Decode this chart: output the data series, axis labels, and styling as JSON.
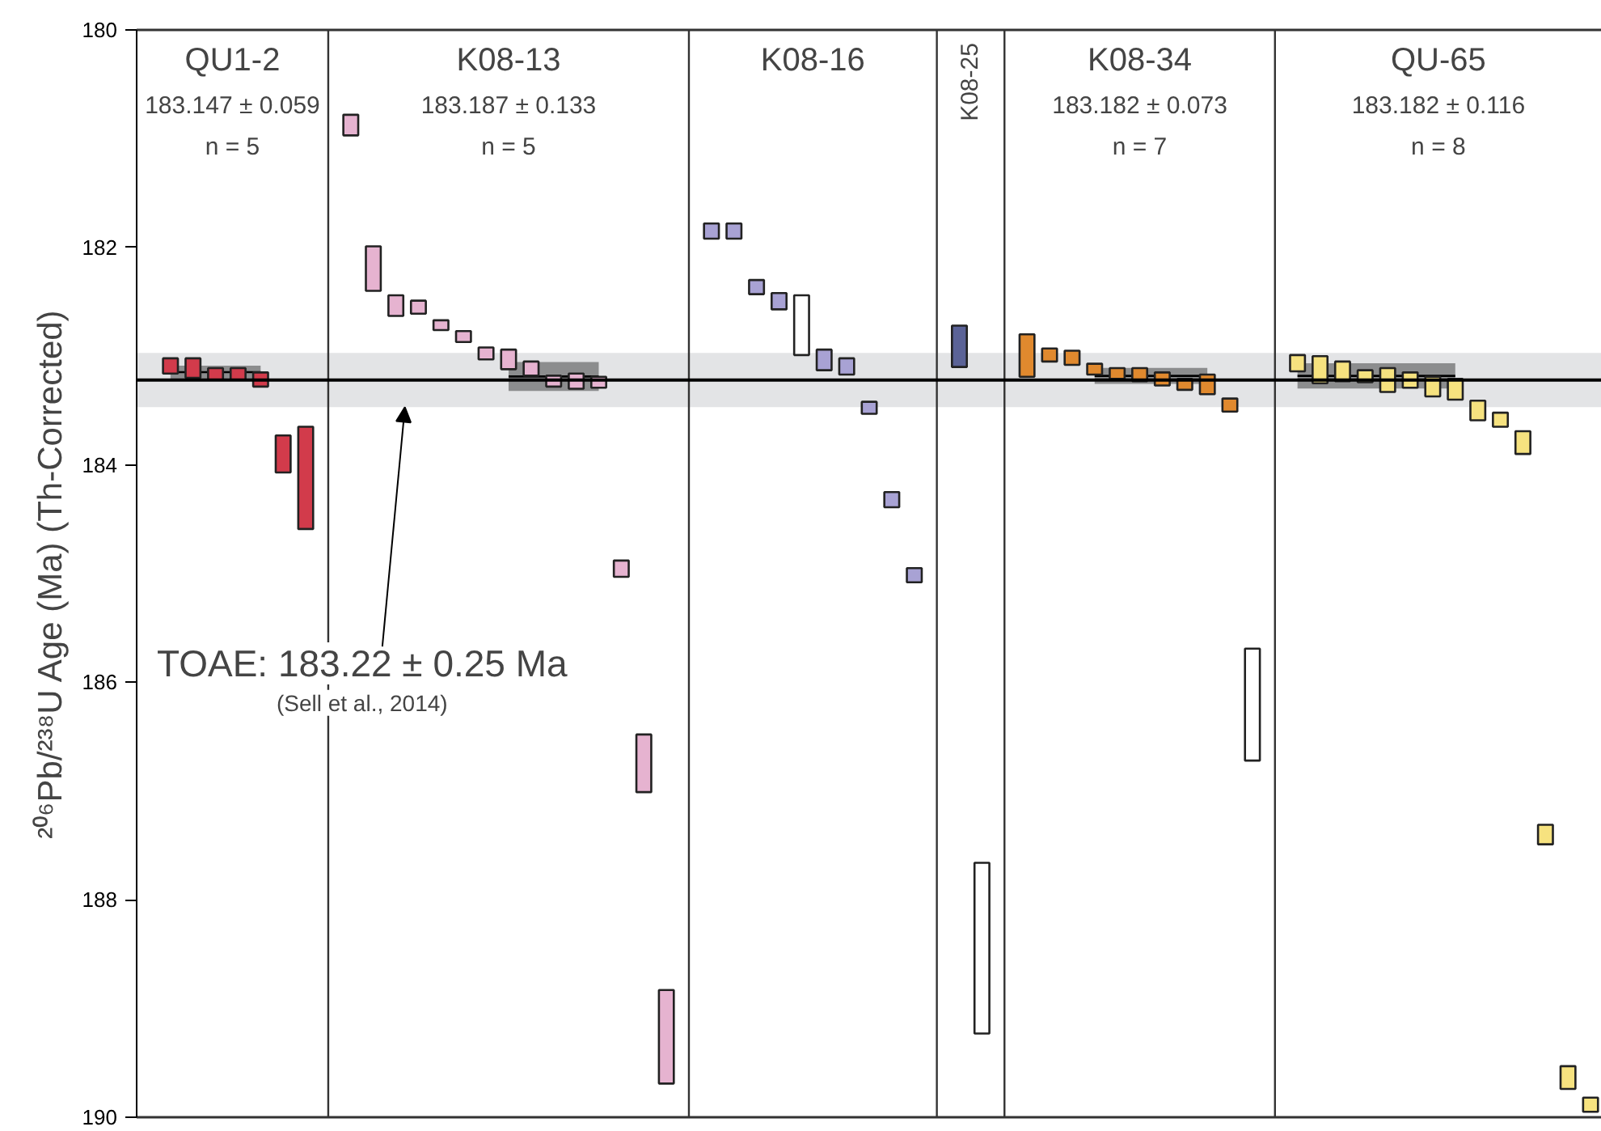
{
  "chart_data": {
    "type": "bar",
    "ylabel": "²⁰⁶Pb/²³⁸U Age (Ma) (Th-Corrected)",
    "categories": [
      null,
      null,
      null,
      null,
      null,
      null,
      null,
      null,
      null,
      null,
      null,
      null,
      null,
      null,
      null,
      null,
      null,
      null,
      null,
      null,
      null,
      null,
      null,
      null,
      null,
      null,
      null,
      null,
      null,
      null,
      null,
      null,
      null,
      null,
      null,
      null,
      null,
      null,
      null,
      null,
      null,
      null,
      null,
      null,
      null,
      null,
      null,
      null,
      null,
      null,
      null,
      null,
      null,
      null,
      null,
      null,
      null,
      null,
      null,
      null,
      null,
      null,
      null,
      null,
      null
    ],
    "series": [
      {
        "values": [
          null,
          0.14,
          0.18,
          0.11,
          0.11,
          0.13,
          0.34,
          0.94,
          null,
          0.19,
          0.41,
          0.19,
          0.12,
          0.09,
          0.1,
          0.11,
          0.18,
          0.13,
          0.1,
          0.14,
          0.1,
          0.15,
          0.53,
          0.86,
          null,
          0.14,
          0.14,
          0.13,
          0.15,
          0.55,
          0.19,
          0.15,
          0.11,
          0.14,
          0.13,
          null,
          0.38,
          1.57,
          null,
          0.39,
          0.12,
          0.13,
          0.1,
          0.1,
          0.12,
          0.12,
          0.1,
          0.18,
          0.12,
          1.03,
          null,
          0.15,
          0.25,
          0.18,
          0.11,
          0.22,
          0.14,
          0.18,
          0.19,
          0.18,
          0.13,
          0.21,
          0.18,
          0.21,
          0.13
        ],
        "base": [
          null,
          183.02,
          183.02,
          183.11,
          183.11,
          183.15,
          183.73,
          183.65,
          null,
          180.78,
          181.99,
          182.44,
          182.49,
          182.67,
          182.77,
          182.92,
          182.94,
          183.05,
          183.18,
          183.16,
          183.19,
          184.88,
          186.48,
          188.83,
          null,
          181.78,
          181.78,
          182.3,
          182.42,
          182.44,
          182.94,
          183.02,
          183.42,
          184.25,
          184.95,
          null,
          182.72,
          187.66,
          null,
          182.8,
          182.93,
          182.95,
          183.07,
          183.11,
          183.11,
          183.15,
          183.21,
          183.17,
          183.39,
          185.69,
          null,
          182.99,
          183.0,
          183.05,
          183.13,
          183.11,
          183.15,
          183.19,
          183.21,
          183.41,
          183.52,
          183.69,
          187.31,
          189.53,
          189.82
        ],
        "colors": [
          "#ffffff",
          "#d23b4b",
          "#d23b4b",
          "#d23b4b",
          "#d23b4b",
          "#d23b4b",
          "#d23b4b",
          "#d23b4b",
          "#ffffff",
          "#e6b3d0",
          "#e6b3d0",
          "#e6b3d0",
          "#e6b3d0",
          "#e6b3d0",
          "#e6b3d0",
          "#e6b3d0",
          "#e6b3d0",
          "#e6b3d0",
          "#e6b3d0",
          "#e6b3d0",
          "#e6b3d0",
          "#e6b3d0",
          "#e6b3d0",
          "#e6b3d0",
          "#ffffff",
          "#a8a2d4",
          "#a8a2d4",
          "#a8a2d4",
          "#a8a2d4",
          "#ffffff",
          "#a8a2d4",
          "#a8a2d4",
          "#a8a2d4",
          "#a8a2d4",
          "#a8a2d4",
          "#ffffff",
          "#5b6397",
          "#ffffff",
          "#ffffff",
          "#e0892e",
          "#e0892e",
          "#e0892e",
          "#e0892e",
          "#e0892e",
          "#e0892e",
          "#e0892e",
          "#e0892e",
          "#e0892e",
          "#e0892e",
          "#ffffff",
          "#ffffff",
          "#f6e27f",
          "#f6e27f",
          "#f6e27f",
          "#f6e27f",
          "#f6e27f",
          "#f6e27f",
          "#f6e27f",
          "#f6e27f",
          "#f6e27f",
          "#f6e27f",
          "#f6e27f",
          "#f6e27f",
          "#f6e27f",
          "#f6e27f"
        ]
      },
      {
        "type": "line",
        "color": "#000000",
        "values": [
          null,
          183.147,
          183.147,
          183.147,
          183.147,
          183.147,
          null,
          null,
          null,
          null,
          null,
          null,
          null,
          null,
          null,
          null,
          null,
          null,
          null,
          null,
          null,
          null,
          null,
          null,
          null,
          null,
          null,
          null,
          null,
          null,
          null,
          null,
          null,
          null,
          null,
          null,
          null,
          null,
          null,
          null,
          null,
          null,
          null,
          null,
          null,
          null,
          null,
          null,
          null,
          null,
          null,
          null,
          null,
          null,
          null,
          null,
          null,
          null,
          null,
          null,
          null,
          null,
          null,
          null,
          null
        ],
        "lower": [
          null,
          183.088,
          183.088,
          183.088,
          183.088,
          183.088,
          null,
          null,
          null,
          null,
          null,
          null,
          null,
          null,
          null,
          null,
          null,
          null,
          null,
          null,
          null,
          null,
          null,
          null,
          null,
          null,
          null,
          null,
          null,
          null,
          null,
          null,
          null,
          null,
          null,
          null,
          null,
          null,
          null,
          null,
          null,
          null,
          null,
          null,
          null,
          null,
          null,
          null,
          null,
          null,
          null,
          null,
          null,
          null,
          null,
          null,
          null,
          null,
          null,
          null,
          null,
          null,
          null,
          null,
          null
        ],
        "upper": [
          null,
          183.206,
          183.206,
          183.206,
          183.206,
          183.206,
          null,
          null,
          null,
          null,
          null,
          null,
          null,
          null,
          null,
          null,
          null,
          null,
          null,
          null,
          null,
          null,
          null,
          null,
          null,
          null,
          null,
          null,
          null,
          null,
          null,
          null,
          null,
          null,
          null,
          null,
          null,
          null,
          null,
          null,
          null,
          null,
          null,
          null,
          null,
          null,
          null,
          null,
          null,
          null,
          null,
          null,
          null,
          null,
          null,
          null,
          null,
          null,
          null,
          null,
          null,
          null,
          null,
          null,
          null
        ]
      },
      {
        "type": "line",
        "color": "#000000",
        "values": [
          null,
          null,
          null,
          null,
          null,
          null,
          null,
          null,
          null,
          null,
          null,
          null,
          null,
          null,
          null,
          null,
          183.187,
          183.187,
          183.187,
          183.187,
          183.187,
          null,
          null,
          null,
          null,
          null,
          null,
          null,
          null,
          null,
          null,
          null,
          null,
          null,
          null,
          null,
          null,
          null,
          null,
          null,
          null,
          null,
          null,
          null,
          null,
          null,
          null,
          null,
          null,
          null,
          null,
          null,
          null,
          null,
          null,
          null,
          null,
          null,
          null,
          null,
          null,
          null,
          null,
          null,
          null
        ],
        "lower": [
          null,
          null,
          null,
          null,
          null,
          null,
          null,
          null,
          null,
          null,
          null,
          null,
          null,
          null,
          null,
          null,
          183.054,
          183.054,
          183.054,
          183.054,
          183.054,
          null,
          null,
          null,
          null,
          null,
          null,
          null,
          null,
          null,
          null,
          null,
          null,
          null,
          null,
          null,
          null,
          null,
          null,
          null,
          null,
          null,
          null,
          null,
          null,
          null,
          null,
          null,
          null,
          null,
          null,
          null,
          null,
          null,
          null,
          null,
          null,
          null,
          null,
          null,
          null,
          null,
          null,
          null,
          null
        ],
        "upper": [
          null,
          null,
          null,
          null,
          null,
          null,
          null,
          null,
          null,
          null,
          null,
          null,
          null,
          null,
          null,
          null,
          183.32,
          183.32,
          183.32,
          183.32,
          183.32,
          null,
          null,
          null,
          null,
          null,
          null,
          null,
          null,
          null,
          null,
          null,
          null,
          null,
          null,
          null,
          null,
          null,
          null,
          null,
          null,
          null,
          null,
          null,
          null,
          null,
          null,
          null,
          null,
          null,
          null,
          null,
          null,
          null,
          null,
          null,
          null,
          null,
          null,
          null,
          null,
          null,
          null,
          null,
          null
        ]
      },
      {
        "type": "line",
        "color": "#000000",
        "values": [
          null,
          null,
          null,
          null,
          null,
          null,
          null,
          null,
          null,
          null,
          null,
          null,
          null,
          null,
          null,
          null,
          null,
          null,
          null,
          null,
          null,
          null,
          null,
          null,
          null,
          null,
          null,
          null,
          null,
          null,
          null,
          null,
          null,
          null,
          null,
          null,
          null,
          null,
          null,
          null,
          null,
          null,
          183.182,
          183.182,
          183.182,
          183.182,
          183.182,
          183.182,
          null,
          null,
          null,
          null,
          null,
          null,
          null,
          null,
          null,
          null,
          null,
          null,
          null,
          null,
          null,
          null,
          null
        ],
        "lower": [
          null,
          null,
          null,
          null,
          null,
          null,
          null,
          null,
          null,
          null,
          null,
          null,
          null,
          null,
          null,
          null,
          null,
          null,
          null,
          null,
          null,
          null,
          null,
          null,
          null,
          null,
          null,
          null,
          null,
          null,
          null,
          null,
          null,
          null,
          null,
          null,
          null,
          null,
          null,
          null,
          null,
          null,
          183.109,
          183.109,
          183.109,
          183.109,
          183.109,
          183.109,
          null,
          null,
          null,
          null,
          null,
          null,
          null,
          null,
          null,
          null,
          null,
          null,
          null,
          null,
          null,
          null,
          null
        ],
        "upper": [
          null,
          null,
          null,
          null,
          null,
          null,
          null,
          null,
          null,
          null,
          null,
          null,
          null,
          null,
          null,
          null,
          null,
          null,
          null,
          null,
          null,
          null,
          null,
          null,
          null,
          null,
          null,
          null,
          null,
          null,
          null,
          null,
          null,
          null,
          null,
          null,
          null,
          null,
          null,
          null,
          null,
          null,
          183.255,
          183.255,
          183.255,
          183.255,
          183.255,
          183.255,
          null,
          null,
          null,
          null,
          null,
          null,
          null,
          null,
          null,
          null,
          null,
          null,
          null,
          null,
          null,
          null,
          null
        ]
      },
      {
        "type": "line",
        "color": "#000000",
        "values": [
          null,
          null,
          null,
          null,
          null,
          null,
          null,
          null,
          null,
          null,
          null,
          null,
          null,
          null,
          null,
          null,
          null,
          null,
          null,
          null,
          null,
          null,
          null,
          null,
          null,
          null,
          null,
          null,
          null,
          null,
          null,
          null,
          null,
          null,
          null,
          null,
          null,
          null,
          null,
          null,
          null,
          null,
          null,
          null,
          null,
          null,
          null,
          null,
          null,
          null,
          null,
          183.182,
          183.182,
          183.182,
          183.182,
          183.182,
          183.182,
          183.182,
          183.182,
          null,
          null,
          null,
          null,
          null,
          null
        ],
        "lower": [
          null,
          null,
          null,
          null,
          null,
          null,
          null,
          null,
          null,
          null,
          null,
          null,
          null,
          null,
          null,
          null,
          null,
          null,
          null,
          null,
          null,
          null,
          null,
          null,
          null,
          null,
          null,
          null,
          null,
          null,
          null,
          null,
          null,
          null,
          null,
          null,
          null,
          null,
          null,
          null,
          null,
          null,
          null,
          null,
          null,
          null,
          null,
          null,
          null,
          null,
          null,
          183.066,
          183.066,
          183.066,
          183.066,
          183.066,
          183.066,
          183.066,
          183.066,
          null,
          null,
          null,
          null,
          null,
          null
        ],
        "upper": [
          null,
          null,
          null,
          null,
          null,
          null,
          null,
          null,
          null,
          null,
          null,
          null,
          null,
          null,
          null,
          null,
          null,
          null,
          null,
          null,
          null,
          null,
          null,
          null,
          null,
          null,
          null,
          null,
          null,
          null,
          null,
          null,
          null,
          null,
          null,
          null,
          null,
          null,
          null,
          null,
          null,
          null,
          null,
          null,
          null,
          null,
          null,
          null,
          null,
          null,
          null,
          183.298,
          183.298,
          183.298,
          183.298,
          183.298,
          183.298,
          183.298,
          183.298,
          null,
          null,
          null,
          null,
          null,
          null
        ]
      }
    ],
    "ylim": [
      190,
      180
    ],
    "yticks": [
      180,
      182,
      184,
      186,
      188,
      190
    ],
    "tick_labels": "y",
    "grid": "x",
    "ref_lines": [
      {
        "axis": "y",
        "value": 183.22,
        "label": "TOAE: 183.22 ± 0.25 Ma",
        "color": "#000000"
      }
    ],
    "bands": [
      {
        "axis": "y",
        "from": 182.97,
        "to": 183.47,
        "color": "#e3e4e6"
      }
    ],
    "annotations": [
      "QU1-2\n183.147 ± 0.059\nn = 5",
      "K08-13\n183.187 ± 0.133\nn = 5",
      "K08-16",
      "K08-25",
      "K08-34\n183.182 ± 0.073\nn = 7",
      "QU-65\n183.182 ± 0.116\nn = 8",
      "(Sell et al., 2014)"
    ]
  }
}
